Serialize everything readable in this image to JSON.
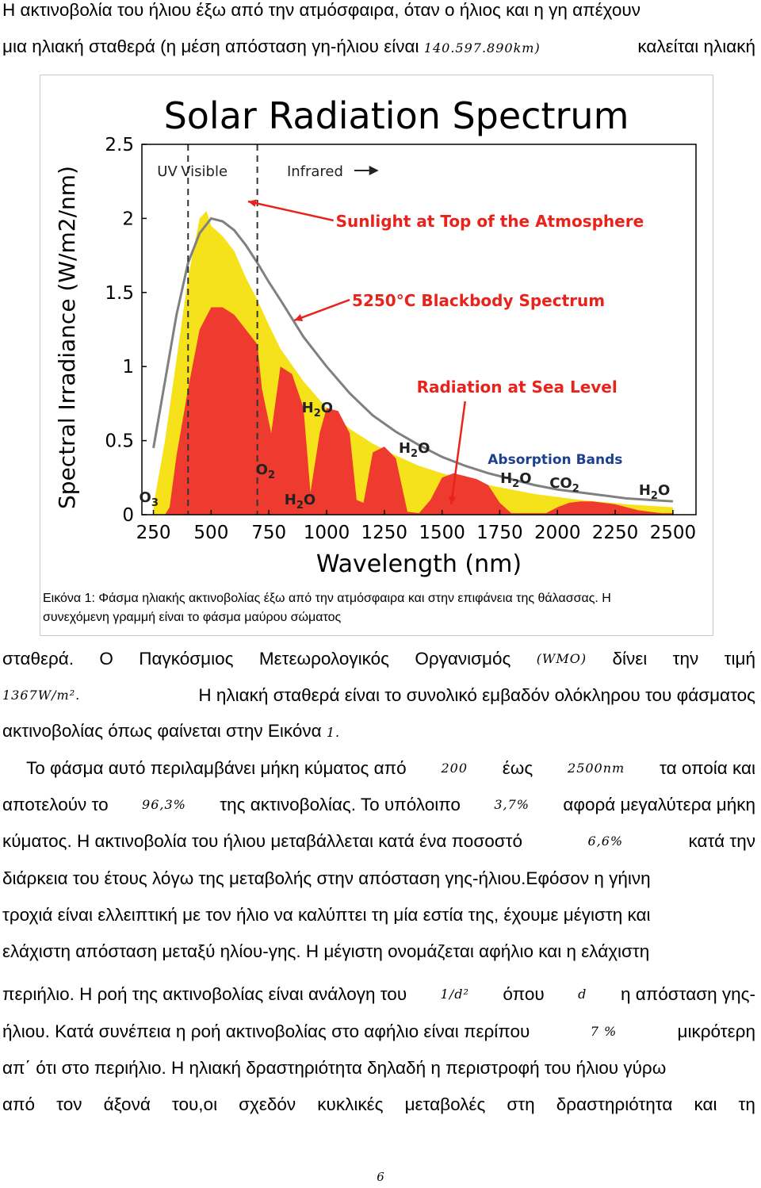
{
  "paragraph1": {
    "line1": "Η ακτινοβολία του ήλιου έξω από την ατμόσφαιρα, όταν ο ήλιος και η γη απέχουν",
    "line2_a": "μια ηλιακή σταθερά (η μέση απόσταση γη-ήλιου είναι",
    "line2_num": "140.597.890km)",
    "line2_b": "καλείται ηλιακή"
  },
  "figure": {
    "caption_line1": "Εικόνα 1: Φάσμα ηλιακής ακτινοβολίας έξω από την ατμόσφαιρα και στην επιφάνεια της θάλασσας. Η",
    "caption_line2": "συνεχόμενη γραμμή είναι το φάσμα μαύρου σώματος"
  },
  "chart_data": {
    "type": "area",
    "title": "Solar Radiation Spectrum",
    "xlabel": "Wavelength (nm)",
    "ylabel": "Spectral Irradiance (W/m2/nm)",
    "xlim": [
      200,
      2600
    ],
    "ylim": [
      0,
      2.5
    ],
    "xticks": [
      250,
      500,
      750,
      1000,
      1250,
      1500,
      1750,
      2000,
      2250,
      2500
    ],
    "yticks": [
      0,
      0.5,
      1,
      1.5,
      2,
      2.5
    ],
    "grid": false,
    "region_labels": [
      "UV",
      "Visible",
      "Infrared"
    ],
    "region_boundaries_nm": [
      400,
      700
    ],
    "series": [
      {
        "name": "Sunlight at Top of the Atmosphere",
        "color": "#f5e21b",
        "x": [
          250,
          300,
          350,
          400,
          450,
          480,
          500,
          550,
          600,
          650,
          700,
          750,
          800,
          900,
          1000,
          1100,
          1200,
          1300,
          1400,
          1500,
          1600,
          1700,
          1800,
          1900,
          2000,
          2100,
          2200,
          2300,
          2400,
          2500
        ],
        "values": [
          0.06,
          0.5,
          1.05,
          1.6,
          2.0,
          2.05,
          1.95,
          1.88,
          1.78,
          1.6,
          1.45,
          1.28,
          1.12,
          0.9,
          0.72,
          0.58,
          0.48,
          0.4,
          0.33,
          0.28,
          0.24,
          0.2,
          0.17,
          0.14,
          0.12,
          0.1,
          0.085,
          0.07,
          0.06,
          0.05
        ]
      },
      {
        "name": "5250°C Blackbody Spectrum",
        "color": "#808080",
        "x": [
          250,
          300,
          350,
          400,
          450,
          500,
          550,
          600,
          650,
          700,
          750,
          800,
          900,
          1000,
          1100,
          1200,
          1300,
          1400,
          1500,
          1600,
          1700,
          1800,
          1900,
          2000,
          2100,
          2200,
          2300,
          2400,
          2500
        ],
        "values": [
          0.45,
          0.9,
          1.35,
          1.7,
          1.9,
          2.0,
          1.98,
          1.92,
          1.82,
          1.7,
          1.57,
          1.45,
          1.2,
          1.0,
          0.82,
          0.67,
          0.56,
          0.47,
          0.39,
          0.33,
          0.28,
          0.24,
          0.2,
          0.17,
          0.15,
          0.13,
          0.11,
          0.1,
          0.09
        ]
      },
      {
        "name": "Radiation at Sea Level",
        "color": "#ef3b2f",
        "x": [
          250,
          300,
          320,
          350,
          400,
          450,
          500,
          550,
          600,
          650,
          700,
          720,
          760,
          800,
          850,
          900,
          930,
          970,
          1000,
          1050,
          1100,
          1130,
          1160,
          1200,
          1250,
          1300,
          1350,
          1400,
          1450,
          1500,
          1550,
          1600,
          1650,
          1700,
          1750,
          1800,
          1850,
          1900,
          1950,
          2000,
          2050,
          2100,
          2150,
          2200,
          2250,
          2300,
          2350,
          2400,
          2450,
          2500
        ],
        "values": [
          0,
          0,
          0.05,
          0.4,
          0.85,
          1.25,
          1.4,
          1.4,
          1.35,
          1.25,
          1.15,
          0.85,
          0.55,
          1.0,
          0.95,
          0.72,
          0.15,
          0.55,
          0.72,
          0.7,
          0.55,
          0.1,
          0.08,
          0.42,
          0.46,
          0.38,
          0.02,
          0.01,
          0.1,
          0.25,
          0.28,
          0.26,
          0.24,
          0.2,
          0.08,
          0.01,
          0.01,
          0.01,
          0.01,
          0.05,
          0.08,
          0.09,
          0.09,
          0.08,
          0.07,
          0.05,
          0.03,
          0.02,
          0.01,
          0.01
        ]
      }
    ],
    "annotations": [
      "O3",
      "O2",
      "H2O",
      "H2O",
      "H2O",
      "H2O",
      "CO2",
      "H2O",
      "Absorption Bands"
    ]
  },
  "paragraph2": {
    "line1_words": [
      "σταθερά.",
      "Ο",
      "Παγκόσμιος",
      "Μετεωρολογικός",
      "Οργανισμός",
      "(WMO)",
      "δίνει",
      "την",
      "τιμή"
    ],
    "line2_num": "1367W/m².",
    "line2_text": "Η ηλιακή σταθερά είναι το συνολικό εμβαδόν ολόκληρου του φάσματος",
    "line3_text": "ακτινοβολίας όπως φαίνεται στην Εικόνα",
    "line3_num": "1."
  },
  "paragraph3": {
    "l1_a": "Το φάσμα αυτό περιλαμβάνει μήκη κύματος από",
    "l1_n1": "200",
    "l1_b": "έως",
    "l1_n2": "2500nm",
    "l1_c": "τα οποία και",
    "l2_a": "αποτελούν το",
    "l2_n1": "96,3%",
    "l2_b": "της ακτινοβολίας. Το υπόλοιπο",
    "l2_n2": "3,7%",
    "l2_c": "αφορά μεγαλύτερα μήκη",
    "l3_a": "κύματος. Η ακτινοβολία του ήλιου μεταβάλλεται κατά ένα ποσοστό",
    "l3_n": "6,6%",
    "l3_b": "κατά την",
    "l4": "διάρκεια του έτους λόγω της μεταβολής στην απόσταση γης-ήλιου.Εφόσον η γήινη",
    "l5": "τροχιά είναι ελλειπτική με τον ήλιο να καλύπτει τη μία εστία της, έχουμε μέγιστη και",
    "l6": "ελάχιστη απόσταση μεταξύ ηλίου-γης. Η μέγιστη ονομάζεται αφήλιο και η ελάχιστη",
    "l7_a": "περιήλιο. Η ροή της ακτινοβολίας είναι ανάλογη του",
    "l7_n": "1/d²",
    "l7_b": "όπου",
    "l7_d": "d",
    "l7_c": "η απόσταση γης-",
    "l8_a": "ήλιου. Κατά συνέπεια η ροή ακτινοβολίας στο αφήλιο είναι περίπου",
    "l8_n": "7 %",
    "l8_b": "μικρότερη",
    "l9": "απ΄ ότι στο περιήλιο. Η ηλιακή δραστηριότητα δηλαδή η περιστροφή του ήλιου γύρω",
    "l10_words": [
      "από",
      "τον",
      "άξονά",
      "του,οι",
      "σχεδόν",
      "κυκλικές",
      "μεταβολές",
      "στη",
      "δραστηριότητα",
      "και",
      "τη"
    ]
  },
  "page_number": "6"
}
